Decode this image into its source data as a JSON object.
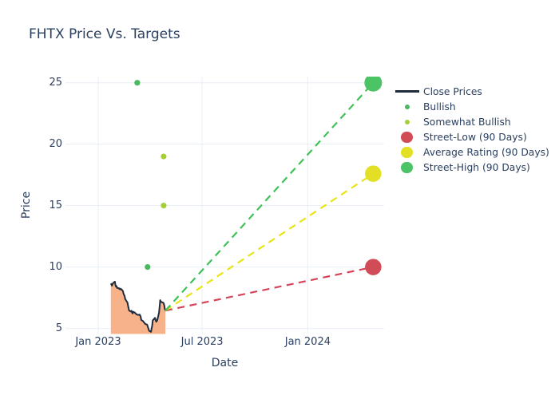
{
  "chart_data": {
    "type": "line",
    "title": "FHTX Price Vs. Targets",
    "xlabel": "Date",
    "ylabel": "Price",
    "x_ticks": [
      {
        "date": "2023-01-01",
        "label": "Jan 2023"
      },
      {
        "date": "2023-07-01",
        "label": "Jul 2023"
      },
      {
        "date": "2024-01-01",
        "label": "Jan 2024"
      }
    ],
    "y_ticks": [
      5,
      10,
      15,
      20,
      25
    ],
    "x_range": [
      "2022-11-05",
      "2024-05-13"
    ],
    "y_range": [
      4.55,
      25.5
    ],
    "grid": true,
    "legend_position": "right",
    "close_prices": {
      "name": "Close Prices",
      "line_color": "#1e2b3c",
      "fill_color": "#f7b289",
      "dates": [
        "2023-01-23",
        "2023-01-24",
        "2023-01-25",
        "2023-01-26",
        "2023-01-27",
        "2023-01-30",
        "2023-01-31",
        "2023-02-01",
        "2023-02-02",
        "2023-02-03",
        "2023-02-06",
        "2023-02-07",
        "2023-02-08",
        "2023-02-09",
        "2023-02-10",
        "2023-02-13",
        "2023-02-14",
        "2023-02-15",
        "2023-02-16",
        "2023-02-17",
        "2023-02-21",
        "2023-02-22",
        "2023-02-23",
        "2023-02-24",
        "2023-02-27",
        "2023-02-28",
        "2023-03-01",
        "2023-03-02",
        "2023-03-03",
        "2023-03-06",
        "2023-03-07",
        "2023-03-08",
        "2023-03-09",
        "2023-03-10",
        "2023-03-13",
        "2023-03-14",
        "2023-03-15",
        "2023-03-16",
        "2023-03-17",
        "2023-03-20",
        "2023-03-21",
        "2023-03-22",
        "2023-03-23",
        "2023-03-24",
        "2023-03-27",
        "2023-03-28",
        "2023-03-29",
        "2023-03-30",
        "2023-03-31",
        "2023-04-03",
        "2023-04-04",
        "2023-04-05",
        "2023-04-06",
        "2023-04-10",
        "2023-04-11",
        "2023-04-12",
        "2023-04-13",
        "2023-04-14",
        "2023-04-17",
        "2023-04-18",
        "2023-04-19",
        "2023-04-20",
        "2023-04-21",
        "2023-04-24",
        "2023-04-25",
        "2023-04-26",
        "2023-04-27",
        "2023-04-28"
      ],
      "values": [
        8.55,
        8.62,
        8.48,
        8.6,
        8.7,
        8.81,
        8.55,
        8.4,
        8.44,
        8.3,
        8.28,
        8.2,
        8.24,
        8.18,
        8.21,
        8.05,
        7.85,
        7.72,
        7.65,
        7.4,
        7.1,
        6.85,
        6.62,
        6.45,
        6.38,
        6.44,
        6.3,
        6.22,
        6.36,
        6.28,
        6.22,
        6.18,
        6.14,
        6.12,
        6.1,
        6.13,
        6.07,
        5.95,
        5.69,
        5.6,
        5.54,
        5.48,
        5.43,
        5.36,
        5.32,
        5.2,
        5.06,
        4.9,
        4.8,
        4.72,
        5.0,
        5.22,
        5.65,
        5.86,
        5.7,
        5.54,
        5.6,
        5.69,
        6.3,
        6.77,
        7.3,
        7.2,
        7.15,
        7.1,
        7.05,
        6.9,
        6.6,
        6.45
      ]
    },
    "ratings": [
      {
        "name": "Bullish",
        "color": "#4bb860",
        "marker_diameter": 7.2,
        "points": [
          {
            "date": "2023-03-10",
            "value": 25
          },
          {
            "date": "2023-03-28",
            "value": 10
          }
        ]
      },
      {
        "name": "Somewhat Bullish",
        "color": "#a6ce39",
        "marker_diameter": 7.2,
        "points": [
          {
            "date": "2023-04-25",
            "value": 19
          },
          {
            "date": "2023-04-25",
            "value": 15
          }
        ]
      }
    ],
    "targets": [
      {
        "name": "Street-Low (90 Days)",
        "color": "#d24c57",
        "line_color": "#d5455a",
        "start": {
          "date": "2023-04-28",
          "value": 6.45
        },
        "end": {
          "date": "2024-04-24",
          "value": 10.0
        },
        "marker_diameter": 20.5
      },
      {
        "name": "Average Rating (90 Days)",
        "color": "#e2df24",
        "line_color": "#e8e414",
        "start": {
          "date": "2023-04-28",
          "value": 6.45
        },
        "end": {
          "date": "2024-04-24",
          "value": 17.6
        },
        "marker_diameter": 20.5
      },
      {
        "name": "Street-High (90 Days)",
        "color": "#4cc364",
        "line_color": "#3ec157",
        "start": {
          "date": "2023-04-28",
          "value": 6.45
        },
        "end": {
          "date": "2024-04-24",
          "value": 25.0
        },
        "marker_diameter": 22
      }
    ],
    "legend": [
      {
        "label": "Close Prices",
        "marker": "line",
        "color": "#1e2b3c"
      },
      {
        "label": "Bullish",
        "marker": "dot-small",
        "color": "#4bb860"
      },
      {
        "label": "Somewhat Bullish",
        "marker": "dot-small",
        "color": "#a6ce39"
      },
      {
        "label": "Street-Low (90 Days)",
        "marker": "dot-large",
        "color": "#d24c57"
      },
      {
        "label": "Average Rating (90 Days)",
        "marker": "dot-large",
        "color": "#e2df24"
      },
      {
        "label": "Street-High (90 Days)",
        "marker": "dot-large",
        "color": "#4cc364"
      }
    ],
    "grid_color": "#e9eef6"
  }
}
